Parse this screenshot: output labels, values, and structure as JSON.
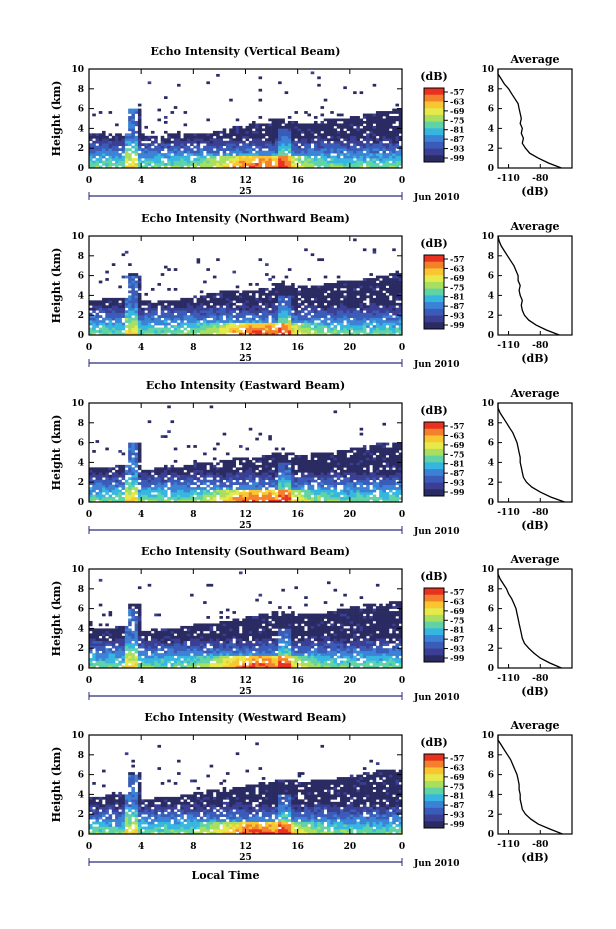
{
  "figure": {
    "x_axis_label": "Local Time",
    "date_label": "Jun 2010",
    "date_sub_label": "25",
    "colorbar_unit": "(dB)",
    "avg_title": "Average",
    "avg_xlabel": "(dB)",
    "height_label": "Height (km)"
  },
  "colorbar": {
    "ticks": [
      "-57",
      "-63",
      "-69",
      "-75",
      "-81",
      "-87",
      "-93",
      "-99"
    ],
    "colors": [
      "#e8311f",
      "#f4802b",
      "#f9c531",
      "#e6e94a",
      "#a8df5f",
      "#5fd3a5",
      "#35b6e1",
      "#3b82d6",
      "#3a5cb8",
      "#3b3f93",
      "#2b2b63"
    ]
  },
  "chart_data": [
    {
      "type": "heatmap",
      "title": "Echo Intensity (Vertical Beam)",
      "xlabel": "",
      "ylabel": "Height (km)",
      "xlim": [
        0,
        24
      ],
      "ylim": [
        0,
        10
      ],
      "xticks": [
        "0",
        "4",
        "8",
        "12",
        "16",
        "20",
        "0"
      ],
      "yticks": [
        "0",
        "2",
        "4",
        "6",
        "8",
        "10"
      ],
      "unit": "dB",
      "color_range": [
        -99,
        -57
      ],
      "echo_top_km": [
        3.4,
        3.5,
        3.6,
        6.0,
        3.2,
        3.3,
        3.4,
        3.5,
        3.6,
        3.7,
        4.0,
        4.2,
        4.4,
        4.6,
        5.0,
        4.8,
        4.6,
        4.8,
        5.0,
        5.1,
        5.3,
        5.5,
        5.8,
        6.0
      ],
      "average": {
        "xlim": [
          -120,
          -50
        ],
        "xticks": [
          "-110",
          "-80"
        ],
        "yticks": [
          "0",
          "2",
          "4",
          "6",
          "8",
          "10"
        ],
        "unit": "dB",
        "height_km": [
          0,
          0.5,
          1.0,
          1.5,
          2.0,
          2.5,
          3.0,
          3.5,
          4.0,
          4.5,
          5.0,
          5.5,
          6.0,
          6.5,
          7.0,
          7.5,
          8.0,
          8.5,
          9.0,
          9.5,
          10.0
        ],
        "value_db": [
          -60,
          -72,
          -82,
          -90,
          -94,
          -97,
          -96,
          -98,
          -97,
          -99,
          -98,
          -99,
          -100,
          -101,
          -104,
          -107,
          -110,
          -114,
          -117,
          -120,
          -120
        ]
      }
    },
    {
      "type": "heatmap",
      "title": "Echo Intensity (Northward Beam)",
      "xlabel": "",
      "ylabel": "Height (km)",
      "xlim": [
        0,
        24
      ],
      "ylim": [
        0,
        10
      ],
      "xticks": [
        "0",
        "4",
        "8",
        "12",
        "16",
        "20",
        "0"
      ],
      "yticks": [
        "0",
        "2",
        "4",
        "6",
        "8",
        "10"
      ],
      "unit": "dB",
      "color_range": [
        -99,
        -57
      ],
      "echo_top_km": [
        3.6,
        3.7,
        3.8,
        6.2,
        3.4,
        3.5,
        3.6,
        3.8,
        4.0,
        4.2,
        4.4,
        4.5,
        4.6,
        4.8,
        5.2,
        5.0,
        4.9,
        5.0,
        5.2,
        5.4,
        5.6,
        5.8,
        6.0,
        6.2
      ],
      "average": {
        "xlim": [
          -120,
          -50
        ],
        "xticks": [
          "-110",
          "-80"
        ],
        "yticks": [
          "0",
          "2",
          "4",
          "6",
          "8",
          "10"
        ],
        "unit": "dB",
        "height_km": [
          0,
          0.5,
          1.0,
          1.5,
          2.0,
          2.5,
          3.0,
          3.5,
          4.0,
          4.5,
          5.0,
          5.5,
          6.0,
          6.5,
          7.0,
          7.5,
          8.0,
          8.5,
          9.0,
          9.5,
          10.0
        ],
        "value_db": [
          -62,
          -74,
          -84,
          -91,
          -95,
          -97,
          -98,
          -97,
          -99,
          -100,
          -99,
          -101,
          -101,
          -103,
          -105,
          -108,
          -111,
          -114,
          -117,
          -119,
          -120
        ]
      }
    },
    {
      "type": "heatmap",
      "title": "Echo Intensity (Eastward Beam)",
      "xlabel": "",
      "ylabel": "Height (km)",
      "xlim": [
        0,
        24
      ],
      "ylim": [
        0,
        10
      ],
      "xticks": [
        "0",
        "4",
        "8",
        "12",
        "16",
        "20",
        "0"
      ],
      "yticks": [
        "0",
        "2",
        "4",
        "6",
        "8",
        "10"
      ],
      "unit": "dB",
      "color_range": [
        -99,
        -57
      ],
      "echo_top_km": [
        3.5,
        3.6,
        3.7,
        6.1,
        3.3,
        3.4,
        3.5,
        3.7,
        3.9,
        4.1,
        4.3,
        4.4,
        4.5,
        4.7,
        5.1,
        4.9,
        4.8,
        4.9,
        5.1,
        5.3,
        5.5,
        5.7,
        5.9,
        6.1
      ],
      "average": {
        "xlim": [
          -120,
          -50
        ],
        "xticks": [
          "-110",
          "-80"
        ],
        "yticks": [
          "0",
          "2",
          "4",
          "6",
          "8",
          "10"
        ],
        "unit": "dB",
        "height_km": [
          0,
          0.5,
          1.0,
          1.5,
          2.0,
          2.5,
          3.0,
          3.5,
          4.0,
          4.5,
          5.0,
          5.5,
          6.0,
          6.5,
          7.0,
          7.5,
          8.0,
          8.5,
          9.0,
          9.5,
          10.0
        ],
        "value_db": [
          -57,
          -70,
          -80,
          -88,
          -93,
          -96,
          -97,
          -98,
          -99,
          -99,
          -100,
          -101,
          -102,
          -104,
          -106,
          -109,
          -112,
          -115,
          -118,
          -120,
          -120
        ]
      }
    },
    {
      "type": "heatmap",
      "title": "Echo Intensity (Southward Beam)",
      "xlabel": "",
      "ylabel": "Height (km)",
      "xlim": [
        0,
        24
      ],
      "ylim": [
        0,
        10
      ],
      "xticks": [
        "0",
        "4",
        "8",
        "12",
        "16",
        "20",
        "0"
      ],
      "yticks": [
        "0",
        "2",
        "4",
        "6",
        "8",
        "10"
      ],
      "unit": "dB",
      "color_range": [
        -99,
        -57
      ],
      "echo_top_km": [
        4.0,
        4.1,
        4.2,
        6.4,
        3.8,
        3.9,
        4.0,
        4.2,
        4.4,
        4.6,
        4.8,
        5.0,
        5.2,
        5.4,
        5.8,
        5.6,
        5.4,
        5.6,
        5.8,
        6.0,
        6.2,
        6.4,
        6.6,
        6.8
      ],
      "average": {
        "xlim": [
          -120,
          -50
        ],
        "xticks": [
          "-110",
          "-80"
        ],
        "yticks": [
          "0",
          "2",
          "4",
          "6",
          "8",
          "10"
        ],
        "unit": "dB",
        "height_km": [
          0,
          0.5,
          1.0,
          1.5,
          2.0,
          2.5,
          3.0,
          3.5,
          4.0,
          4.5,
          5.0,
          5.5,
          6.0,
          6.5,
          7.0,
          7.5,
          8.0,
          8.5,
          9.0,
          9.5,
          10.0
        ],
        "value_db": [
          -60,
          -71,
          -80,
          -86,
          -91,
          -95,
          -97,
          -98,
          -99,
          -100,
          -101,
          -102,
          -103,
          -105,
          -107,
          -110,
          -112,
          -115,
          -118,
          -120,
          -120
        ]
      }
    },
    {
      "type": "heatmap",
      "title": "Echo Intensity (Westward Beam)",
      "xlabel": "Local Time",
      "ylabel": "Height (km)",
      "xlim": [
        0,
        24
      ],
      "ylim": [
        0,
        10
      ],
      "xticks": [
        "0",
        "4",
        "8",
        "12",
        "16",
        "20",
        "0"
      ],
      "yticks": [
        "0",
        "2",
        "4",
        "6",
        "8",
        "10"
      ],
      "unit": "dB",
      "color_range": [
        -99,
        -57
      ],
      "echo_top_km": [
        3.8,
        3.9,
        4.0,
        6.3,
        3.6,
        3.7,
        3.8,
        4.0,
        4.2,
        4.4,
        4.6,
        4.8,
        5.0,
        5.2,
        5.6,
        5.4,
        5.2,
        5.4,
        5.6,
        5.8,
        6.0,
        6.2,
        6.4,
        6.6
      ],
      "average": {
        "xlim": [
          -120,
          -50
        ],
        "xticks": [
          "-110",
          "-80"
        ],
        "yticks": [
          "0",
          "2",
          "4",
          "6",
          "8",
          "10"
        ],
        "unit": "dB",
        "height_km": [
          0,
          0.5,
          1.0,
          1.5,
          2.0,
          2.5,
          3.0,
          3.5,
          4.0,
          4.5,
          5.0,
          5.5,
          6.0,
          6.5,
          7.0,
          7.5,
          8.0,
          8.5,
          9.0,
          9.5,
          10.0
        ],
        "value_db": [
          -59,
          -71,
          -82,
          -89,
          -94,
          -97,
          -98,
          -99,
          -99,
          -100,
          -100,
          -101,
          -102,
          -104,
          -106,
          -108,
          -111,
          -114,
          -117,
          -120,
          -120
        ]
      }
    }
  ]
}
